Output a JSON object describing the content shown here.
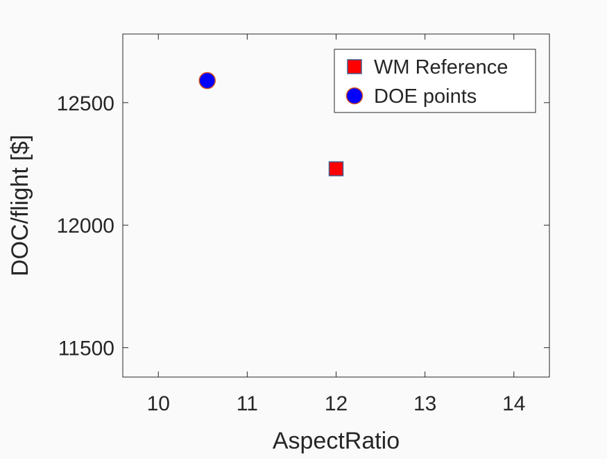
{
  "chart_data": {
    "type": "scatter",
    "title": "",
    "xlabel": "AspectRatio",
    "ylabel": "DOC/flight [$]",
    "xlim": [
      9.6,
      14.4
    ],
    "ylim": [
      11380,
      12780
    ],
    "xticks": [
      10,
      11,
      12,
      13,
      14
    ],
    "yticks": [
      11500,
      12000,
      12500
    ],
    "grid": false,
    "legend_position": "top-right",
    "series": [
      {
        "name": "WM Reference",
        "marker": "square",
        "fill": "#ff0000",
        "edge": "#3f5f8f",
        "points": [
          {
            "x": 12.0,
            "y": 12230
          }
        ]
      },
      {
        "name": "DOE points",
        "marker": "circle",
        "fill": "#0000ff",
        "edge": "#d9531e",
        "points": [
          {
            "x": 10.55,
            "y": 12590
          }
        ]
      }
    ]
  }
}
